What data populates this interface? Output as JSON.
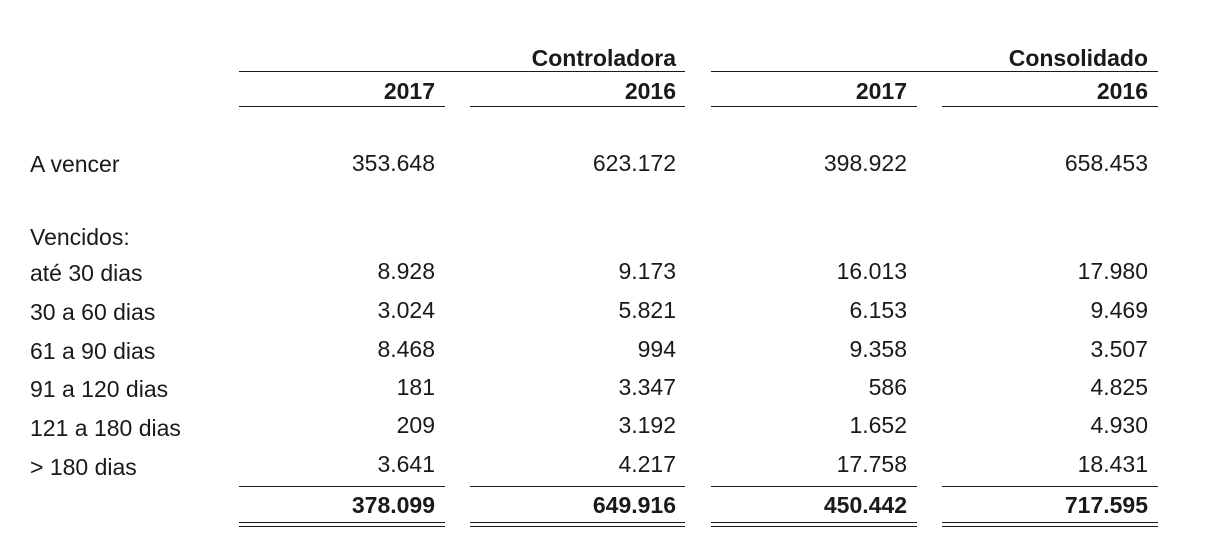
{
  "headers": {
    "group_1": "Controladora",
    "group_2": "Consolidado",
    "years": [
      "2017",
      "2016",
      "2017",
      "2016"
    ]
  },
  "rows": [
    {
      "label": "A vencer",
      "values": [
        "353.648",
        "623.172",
        "398.922",
        "658.453"
      ]
    },
    {
      "label": "Vencidos:",
      "values": [
        "",
        "",
        "",
        ""
      ]
    },
    {
      "label": "até 30 dias",
      "values": [
        "8.928",
        "9.173",
        "16.013",
        "17.980"
      ]
    },
    {
      "label": "30 a 60 dias",
      "values": [
        "3.024",
        "5.821",
        "6.153",
        "9.469"
      ]
    },
    {
      "label": "61 a 90 dias",
      "values": [
        "8.468",
        "994",
        "9.358",
        "3.507"
      ]
    },
    {
      "label": "91 a 120 dias",
      "values": [
        "181",
        "3.347",
        "586",
        "4.825"
      ]
    },
    {
      "label": "121 a 180 dias",
      "values": [
        "209",
        "3.192",
        "1.652",
        "4.930"
      ]
    },
    {
      "label": "> 180 dias",
      "values": [
        "3.641",
        "4.217",
        "17.758",
        "18.431"
      ]
    }
  ],
  "totals": [
    "378.099",
    "649.916",
    "450.442",
    "717.595"
  ]
}
